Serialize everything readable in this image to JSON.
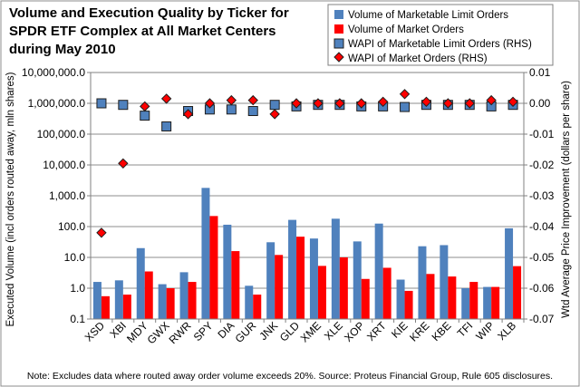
{
  "chart_data": {
    "type": "bar",
    "title": [
      "Volume and Execution Quality by Ticker for",
      "SPDR ETF Complex at All Market Centers",
      "during May 2010"
    ],
    "ylabel": "Executed Volume (incl orders routed away, mln shares)",
    "y2label": "Wtd Average Price Improvement (dollars per share)",
    "note": "Note: Excludes data where routed away order volume exceeds 20%. Source: Proteus Financial Group, Rule 605 disclosures.",
    "y_scale": "log",
    "ylim": [
      0.1,
      10000000
    ],
    "y_ticks": [
      "0.1",
      "1.0",
      "10.0",
      "100.0",
      "1,000.0",
      "10,000.0",
      "100,000.0",
      "1,000,000.0",
      "10,000,000.0"
    ],
    "y2lim": [
      -0.07,
      0.01
    ],
    "y2_ticks": [
      "0.01",
      "0.00",
      "-0.01",
      "-0.02",
      "-0.03",
      "-0.04",
      "-0.05",
      "-0.06",
      "-0.07"
    ],
    "grid": true,
    "legend_position": "top-right",
    "categories": [
      "XSD",
      "XBI",
      "MDY",
      "GWX",
      "RWR",
      "SPY",
      "DIA",
      "GUR",
      "JNK",
      "GLD",
      "XME",
      "XLE",
      "XOP",
      "XRT",
      "KIE",
      "KRE",
      "KBE",
      "TFI",
      "WIP",
      "XLB"
    ],
    "series": [
      {
        "name": "Volume of Marketable Limit Orders",
        "kind": "bar",
        "axis": "left",
        "color": "#4f81bd",
        "values": [
          1.6,
          1.8,
          20,
          1.35,
          3.3,
          1800,
          115,
          1.2,
          31,
          165,
          41,
          180,
          33,
          125,
          1.9,
          23,
          25,
          1.0,
          1.1,
          88
        ]
      },
      {
        "name": "Volume of Market Orders",
        "kind": "bar",
        "axis": "left",
        "color": "#ff0000",
        "values": [
          0.55,
          0.62,
          3.5,
          1.0,
          1.6,
          220,
          16,
          0.62,
          12,
          47,
          5.3,
          10,
          2.0,
          4.6,
          0.82,
          2.9,
          2.4,
          1.6,
          1.1,
          5.2
        ]
      },
      {
        "name": "WAPI of Marketable Limit Orders (RHS)",
        "kind": "square-marker",
        "axis": "right",
        "color": "#4f81bd",
        "values": [
          0.0,
          -0.0005,
          -0.004,
          -0.0075,
          -0.0025,
          -0.002,
          -0.002,
          -0.0025,
          -0.0005,
          -0.001,
          -0.0005,
          -0.0005,
          -0.001,
          -0.001,
          -0.0012,
          -0.0005,
          -0.0005,
          -0.0005,
          -0.001,
          -0.0005
        ]
      },
      {
        "name": "WAPI of Market Orders (RHS)",
        "kind": "diamond-marker",
        "axis": "right",
        "color": "#ff0000",
        "values": [
          -0.042,
          -0.0195,
          -0.001,
          0.0015,
          -0.0035,
          0.0,
          0.001,
          0.001,
          -0.0035,
          0.0,
          0.0,
          0.0,
          0.0,
          0.0005,
          0.003,
          0.0005,
          0.0,
          0.0,
          0.001,
          0.0005
        ]
      }
    ]
  }
}
